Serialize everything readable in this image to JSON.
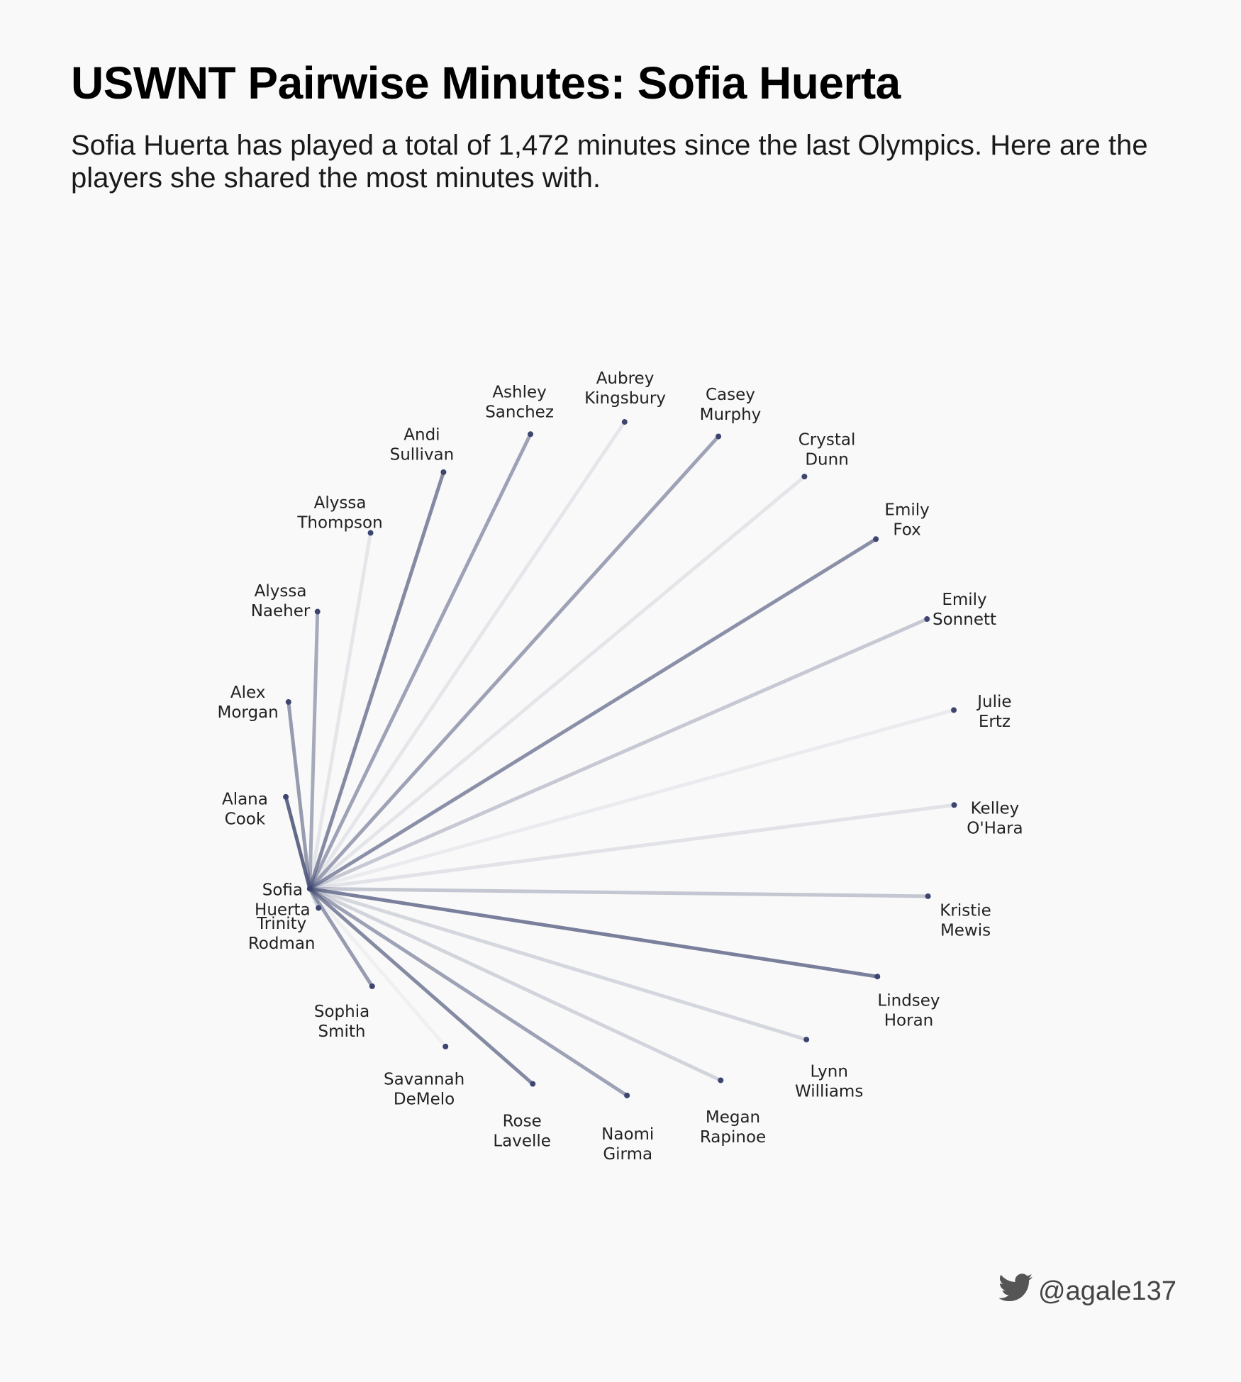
{
  "title": "USWNT Pairwise Minutes: Sofia Huerta",
  "subtitle": "Sofia Huerta has played a total of 1,472 minutes since the last Olympics. Here are the players she shared the most minutes with.",
  "credit": "@agale137",
  "icon": "twitter-bird-icon",
  "colors": {
    "line": "#4a5277",
    "dot": "#3d4570",
    "text": "#222222",
    "background": "#f9f9f9"
  },
  "chart_data": {
    "type": "radial-network",
    "center": [
      "Sofia",
      "Huerta"
    ],
    "players": [
      {
        "name": [
          "Alana",
          "Cook"
        ],
        "strength": 0.95
      },
      {
        "name": [
          "Alex",
          "Morgan"
        ],
        "strength": 0.6
      },
      {
        "name": [
          "Alyssa",
          "Naeher"
        ],
        "strength": 0.5
      },
      {
        "name": [
          "Alyssa",
          "Thompson"
        ],
        "strength": 0.07
      },
      {
        "name": [
          "Andi",
          "Sullivan"
        ],
        "strength": 0.72
      },
      {
        "name": [
          "Ashley",
          "Sanchez"
        ],
        "strength": 0.55
      },
      {
        "name": [
          "Aubrey",
          "Kingsbury"
        ],
        "strength": 0.07
      },
      {
        "name": [
          "Casey",
          "Murphy"
        ],
        "strength": 0.55
      },
      {
        "name": [
          "Crystal",
          "Dunn"
        ],
        "strength": 0.08
      },
      {
        "name": [
          "Emily",
          "Fox"
        ],
        "strength": 0.68
      },
      {
        "name": [
          "Emily",
          "Sonnett"
        ],
        "strength": 0.28
      },
      {
        "name": [
          "Julie",
          "Ertz"
        ],
        "strength": 0.04
      },
      {
        "name": [
          "Kelley",
          "O'Hara"
        ],
        "strength": 0.09
      },
      {
        "name": [
          "Kristie",
          "Mewis"
        ],
        "strength": 0.3
      },
      {
        "name": [
          "Lindsey",
          "Horan"
        ],
        "strength": 0.8
      },
      {
        "name": [
          "Lynn",
          "Williams"
        ],
        "strength": 0.18
      },
      {
        "name": [
          "Megan",
          "Rapinoe"
        ],
        "strength": 0.2
      },
      {
        "name": [
          "Naomi",
          "Girma"
        ],
        "strength": 0.55
      },
      {
        "name": [
          "Rose",
          "Lavelle"
        ],
        "strength": 0.72
      },
      {
        "name": [
          "Savannah",
          "DeMelo"
        ],
        "strength": 0.0
      },
      {
        "name": [
          "Sophia",
          "Smith"
        ],
        "strength": 0.6
      },
      {
        "name": [
          "Trinity",
          "Rodman"
        ],
        "strength": 0.25
      }
    ]
  }
}
